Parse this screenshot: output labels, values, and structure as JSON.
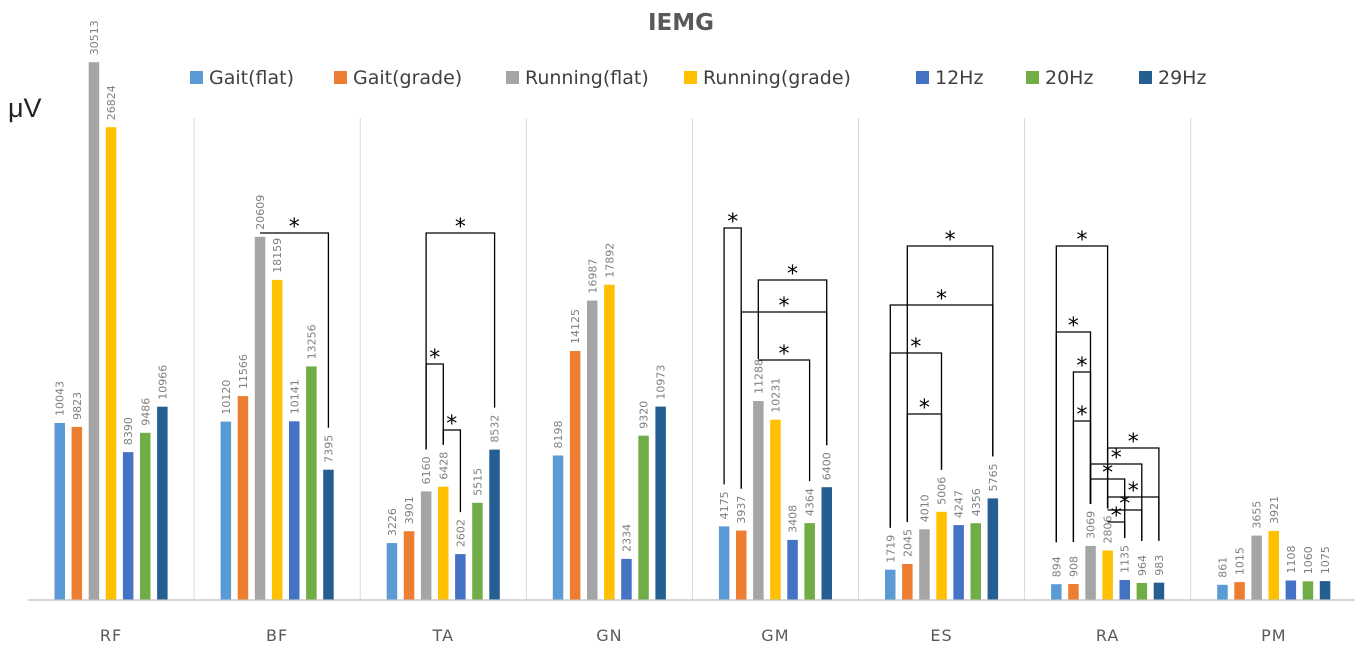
{
  "chart_data": {
    "type": "bar",
    "title": "IEMG",
    "ylabel": "μV",
    "ylim": [
      0,
      32000
    ],
    "grid": false,
    "legend_position": "top",
    "categories": [
      "RF",
      "BF",
      "TA",
      "GN",
      "GM",
      "ES",
      "RA",
      "PM"
    ],
    "series": [
      {
        "name": "Gait(flat)",
        "color": "#5b9bd5",
        "values": [
          10043,
          10120,
          3226,
          8198,
          4175,
          1719,
          894,
          861
        ]
      },
      {
        "name": "Gait(grade)",
        "color": "#ed7d31",
        "values": [
          9823,
          11566,
          3901,
          14125,
          3937,
          2045,
          908,
          1015
        ]
      },
      {
        "name": "Running(flat)",
        "color": "#a5a5a5",
        "values": [
          30513,
          20609,
          6160,
          16987,
          11288,
          4010,
          3069,
          3655
        ]
      },
      {
        "name": "Running(grade)",
        "color": "#ffc000",
        "values": [
          26824,
          18159,
          6428,
          17892,
          10231,
          5006,
          2806,
          3921
        ]
      },
      {
        "name": "12Hz",
        "color": "#4472c4",
        "values": [
          8390,
          10141,
          2602,
          2334,
          3408,
          4247,
          1135,
          1108
        ]
      },
      {
        "name": "20Hz",
        "color": "#70ad47",
        "values": [
          9486,
          13256,
          5515,
          9320,
          4364,
          4356,
          964,
          1060
        ]
      },
      {
        "name": "29Hz",
        "color": "#255e91",
        "values": [
          10966,
          7395,
          8532,
          10973,
          6400,
          5765,
          983,
          1075
        ]
      }
    ],
    "significance": {
      "marker": "*",
      "comparisons": [
        {
          "category": "BF",
          "pair": [
            2,
            6
          ]
        },
        {
          "category": "TA",
          "pair": [
            2,
            6
          ]
        },
        {
          "category": "TA",
          "pair": [
            2,
            3
          ]
        },
        {
          "category": "TA",
          "pair": [
            3,
            4
          ]
        },
        {
          "category": "GM",
          "pair": [
            0,
            1
          ]
        },
        {
          "category": "GM",
          "pair": [
            1,
            6
          ]
        },
        {
          "category": "GM",
          "pair": [
            2,
            6
          ]
        },
        {
          "category": "GM",
          "pair": [
            2,
            5
          ]
        },
        {
          "category": "ES",
          "pair": [
            1,
            6
          ]
        },
        {
          "category": "ES",
          "pair": [
            0,
            6
          ]
        },
        {
          "category": "ES",
          "pair": [
            0,
            3
          ]
        },
        {
          "category": "ES",
          "pair": [
            1,
            3
          ]
        },
        {
          "category": "RA",
          "pair": [
            0,
            3
          ]
        },
        {
          "category": "RA",
          "pair": [
            0,
            2
          ]
        },
        {
          "category": "RA",
          "pair": [
            1,
            2
          ]
        },
        {
          "category": "RA",
          "pair": [
            1,
            2
          ]
        },
        {
          "category": "RA",
          "pair": [
            3,
            6
          ]
        },
        {
          "category": "RA",
          "pair": [
            2,
            5
          ]
        },
        {
          "category": "RA",
          "pair": [
            2,
            4
          ]
        },
        {
          "category": "RA",
          "pair": [
            3,
            6
          ]
        },
        {
          "category": "RA",
          "pair": [
            3,
            5
          ]
        },
        {
          "category": "RA",
          "pair": [
            3,
            4
          ]
        }
      ]
    }
  }
}
